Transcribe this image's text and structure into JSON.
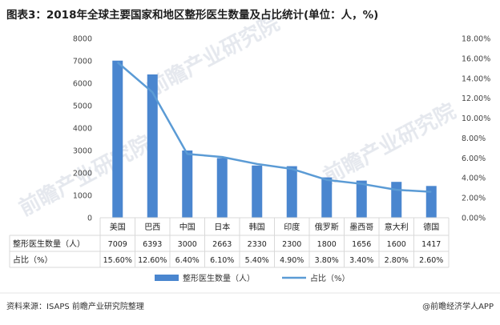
{
  "title": "图表3：2018年全球主要国家和地区整形医生数量及占比统计(单位：人，%)",
  "footer_source": "资料来源：ISAPS 前瞻产业研究院整理",
  "footer_brand": "@前瞻经济学人APP",
  "watermark": "前瞻产业研究院",
  "colors": {
    "bar": "#4a86cf",
    "line": "#5b9bd5",
    "grid": "#d9d9d9",
    "text": "#222222"
  },
  "chart_data": {
    "type": "bar",
    "categories": [
      "美国",
      "巴西",
      "中国",
      "日本",
      "韩国",
      "印度",
      "俄罗斯",
      "墨西哥",
      "意大利",
      "德国"
    ],
    "series": [
      {
        "name": "整形医生数量（人）",
        "type": "bar",
        "axis": "left",
        "values": [
          7009,
          6393,
          3000,
          2663,
          2330,
          2300,
          1800,
          1656,
          1600,
          1417
        ]
      },
      {
        "name": "占比（%）",
        "type": "line",
        "axis": "right",
        "values": [
          15.6,
          12.6,
          6.4,
          6.1,
          5.4,
          4.9,
          3.8,
          3.4,
          2.8,
          2.6
        ]
      }
    ],
    "table_rows": [
      {
        "label": "整形医生数量（人）",
        "cells": [
          "7009",
          "6393",
          "3000",
          "2663",
          "2330",
          "2300",
          "1800",
          "1656",
          "1600",
          "1417"
        ]
      },
      {
        "label": "占比（%）",
        "cells": [
          "15.60%",
          "12.60%",
          "6.40%",
          "6.10%",
          "5.40%",
          "4.90%",
          "3.80%",
          "3.40%",
          "2.80%",
          "2.60%"
        ]
      }
    ],
    "y_left": {
      "min": 0,
      "max": 8000,
      "ticks": [
        "0",
        "1000",
        "2000",
        "3000",
        "4000",
        "5000",
        "6000",
        "7000",
        "8000"
      ]
    },
    "y_right": {
      "min": 0,
      "max": 18,
      "ticks": [
        "0.00%",
        "2.00%",
        "4.00%",
        "6.00%",
        "8.00%",
        "10.00%",
        "12.00%",
        "14.00%",
        "16.00%",
        "18.00%"
      ]
    },
    "legend_position": "bottom",
    "grid": false
  }
}
